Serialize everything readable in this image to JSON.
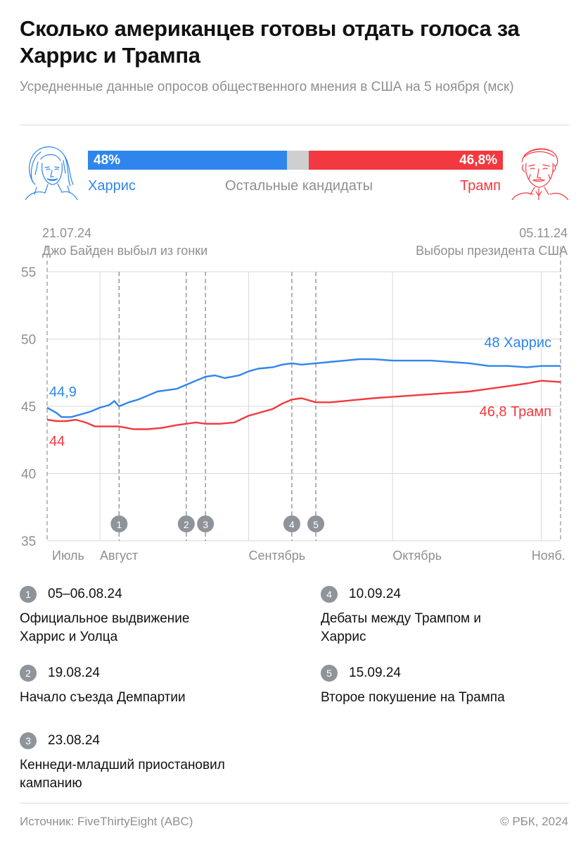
{
  "header": {
    "title": "Сколько американцев готовы отдать голоса за Харрис и Трампа",
    "subtitle": "Усредненные данные опросов общественного мнения в США на 5 ноября (мск)"
  },
  "summary": {
    "harris_value": "48%",
    "harris_label": "Харрис",
    "others_label": "Остальные кандидаты",
    "trump_value": "46,8%",
    "trump_label": "Трамп",
    "harris_share": 48,
    "others_share": 5.2,
    "trump_share": 46.8
  },
  "colors": {
    "harris": "#2e86ec",
    "trump": "#f2393f",
    "others": "#cfcfcf",
    "grid": "#d9d9d9",
    "muted": "#8f8f8f",
    "badge": "#8e949a"
  },
  "chart_data": {
    "type": "line",
    "ylim": [
      35,
      55
    ],
    "yticks": [
      "55",
      "50",
      "45",
      "40",
      "35"
    ],
    "x_start": "2024-07-21",
    "x_end": "2024-11-05",
    "months": [
      {
        "label": "Июль",
        "date": "2024-07-21"
      },
      {
        "label": "Август",
        "date": "2024-08-01"
      },
      {
        "label": "Сентябрь",
        "date": "2024-09-01"
      },
      {
        "label": "Октябрь",
        "date": "2024-10-01"
      },
      {
        "label": "Нояб.",
        "date": "2024-11-01"
      }
    ],
    "start_event": {
      "date_label": "21.07.24",
      "text": "Джо Байден выбыл из гонки"
    },
    "end_event": {
      "date_label": "05.11.24",
      "text": "Выборы президента США"
    },
    "markers": [
      {
        "num": "1",
        "date": "2024-08-05"
      },
      {
        "num": "2",
        "date": "2024-08-19"
      },
      {
        "num": "3",
        "date": "2024-08-23"
      },
      {
        "num": "4",
        "date": "2024-09-10"
      },
      {
        "num": "5",
        "date": "2024-09-15"
      }
    ],
    "series": [
      {
        "name": "Харрис",
        "start_label": "44,9",
        "end_label": "48 Харрис",
        "points": [
          [
            "2024-07-21",
            44.9
          ],
          [
            "2024-07-23",
            44.5
          ],
          [
            "2024-07-24",
            44.2
          ],
          [
            "2024-07-26",
            44.2
          ],
          [
            "2024-07-28",
            44.4
          ],
          [
            "2024-07-30",
            44.6
          ],
          [
            "2024-08-01",
            44.9
          ],
          [
            "2024-08-03",
            45.1
          ],
          [
            "2024-08-04",
            45.4
          ],
          [
            "2024-08-05",
            45.0
          ],
          [
            "2024-08-07",
            45.3
          ],
          [
            "2024-08-09",
            45.5
          ],
          [
            "2024-08-11",
            45.8
          ],
          [
            "2024-08-13",
            46.1
          ],
          [
            "2024-08-15",
            46.2
          ],
          [
            "2024-08-17",
            46.3
          ],
          [
            "2024-08-19",
            46.6
          ],
          [
            "2024-08-21",
            46.9
          ],
          [
            "2024-08-23",
            47.2
          ],
          [
            "2024-08-25",
            47.3
          ],
          [
            "2024-08-27",
            47.1
          ],
          [
            "2024-08-30",
            47.3
          ],
          [
            "2024-09-01",
            47.6
          ],
          [
            "2024-09-03",
            47.8
          ],
          [
            "2024-09-06",
            47.9
          ],
          [
            "2024-09-08",
            48.1
          ],
          [
            "2024-09-10",
            48.2
          ],
          [
            "2024-09-12",
            48.1
          ],
          [
            "2024-09-15",
            48.2
          ],
          [
            "2024-09-18",
            48.3
          ],
          [
            "2024-09-21",
            48.4
          ],
          [
            "2024-09-24",
            48.5
          ],
          [
            "2024-09-27",
            48.5
          ],
          [
            "2024-10-01",
            48.4
          ],
          [
            "2024-10-05",
            48.4
          ],
          [
            "2024-10-09",
            48.4
          ],
          [
            "2024-10-13",
            48.3
          ],
          [
            "2024-10-17",
            48.2
          ],
          [
            "2024-10-21",
            48.0
          ],
          [
            "2024-10-25",
            48.0
          ],
          [
            "2024-10-29",
            47.9
          ],
          [
            "2024-11-01",
            48.0
          ],
          [
            "2024-11-05",
            48.0
          ]
        ]
      },
      {
        "name": "Трамп",
        "start_label": "44",
        "end_label": "46,8 Трамп",
        "points": [
          [
            "2024-07-21",
            44.0
          ],
          [
            "2024-07-23",
            43.9
          ],
          [
            "2024-07-25",
            43.9
          ],
          [
            "2024-07-27",
            44.0
          ],
          [
            "2024-07-29",
            43.8
          ],
          [
            "2024-07-31",
            43.5
          ],
          [
            "2024-08-03",
            43.5
          ],
          [
            "2024-08-05",
            43.5
          ],
          [
            "2024-08-08",
            43.3
          ],
          [
            "2024-08-11",
            43.3
          ],
          [
            "2024-08-14",
            43.4
          ],
          [
            "2024-08-17",
            43.6
          ],
          [
            "2024-08-19",
            43.7
          ],
          [
            "2024-08-21",
            43.8
          ],
          [
            "2024-08-23",
            43.7
          ],
          [
            "2024-08-26",
            43.7
          ],
          [
            "2024-08-29",
            43.8
          ],
          [
            "2024-09-01",
            44.3
          ],
          [
            "2024-09-03",
            44.5
          ],
          [
            "2024-09-06",
            44.8
          ],
          [
            "2024-09-08",
            45.2
          ],
          [
            "2024-09-10",
            45.5
          ],
          [
            "2024-09-12",
            45.6
          ],
          [
            "2024-09-15",
            45.3
          ],
          [
            "2024-09-18",
            45.3
          ],
          [
            "2024-09-21",
            45.4
          ],
          [
            "2024-09-24",
            45.5
          ],
          [
            "2024-09-27",
            45.6
          ],
          [
            "2024-10-01",
            45.7
          ],
          [
            "2024-10-05",
            45.8
          ],
          [
            "2024-10-09",
            45.9
          ],
          [
            "2024-10-13",
            46.0
          ],
          [
            "2024-10-17",
            46.1
          ],
          [
            "2024-10-21",
            46.3
          ],
          [
            "2024-10-25",
            46.5
          ],
          [
            "2024-10-29",
            46.7
          ],
          [
            "2024-11-01",
            46.9
          ],
          [
            "2024-11-05",
            46.8
          ]
        ]
      }
    ]
  },
  "footnotes": [
    {
      "num": "1",
      "date": "05–06.08.24",
      "text": "Официальное выдвижение Харрис и Уолца"
    },
    {
      "num": "2",
      "date": "19.08.24",
      "text": "Начало съезда Демпартии"
    },
    {
      "num": "3",
      "date": "23.08.24",
      "text": "Кеннеди-младший приостановил кампанию"
    },
    {
      "num": "4",
      "date": "10.09.24",
      "text": "Дебаты между Трампом и Харрис"
    },
    {
      "num": "5",
      "date": "15.09.24",
      "text": "Второе покушение на Трампа"
    }
  ],
  "footer": {
    "source": "Источник: FiveThirtyEight (ABC)",
    "copyright": "© РБК, 2024"
  }
}
